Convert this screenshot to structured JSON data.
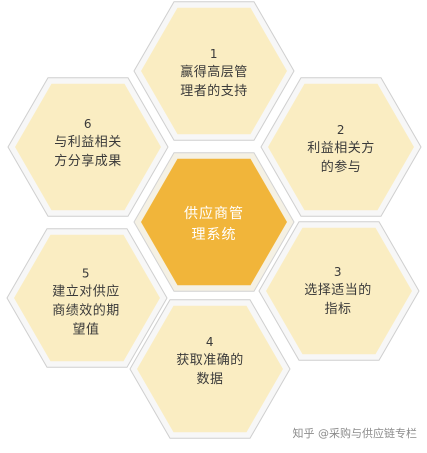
{
  "diagram": {
    "center": {
      "lines": [
        "供应商管",
        "理系统"
      ]
    },
    "items": [
      {
        "number": "1",
        "lines": [
          "赢得高层管",
          "理者的支持"
        ]
      },
      {
        "number": "2",
        "lines": [
          "利益相关方",
          "的参与"
        ]
      },
      {
        "number": "3",
        "lines": [
          "选择适当的",
          "指标"
        ]
      },
      {
        "number": "4",
        "lines": [
          "获取准确的",
          "数据"
        ]
      },
      {
        "number": "5",
        "lines": [
          "建立对供应",
          "商绩效的期",
          "望值"
        ]
      },
      {
        "number": "6",
        "lines": [
          "与利益相关",
          "方分享成果"
        ]
      }
    ]
  },
  "watermark": "知乎 @采购与供应链专栏",
  "colors": {
    "center_fill": "#f1b53a",
    "outer_fill": "#faedc2",
    "border": "#cfcfcf"
  }
}
